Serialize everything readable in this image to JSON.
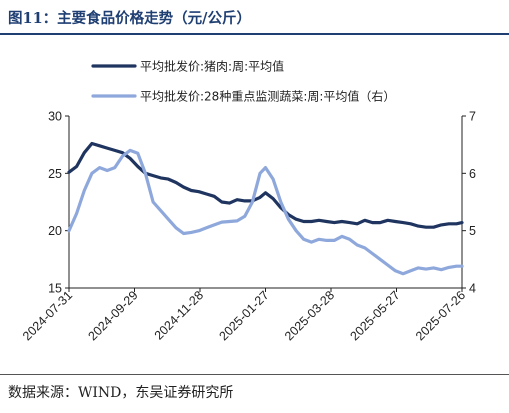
{
  "figure": {
    "title": "图11：主要食品价格走势（元/公斤）",
    "source": "数据来源：WIND，东吴证券研究所"
  },
  "colors": {
    "title": "#1f3f73",
    "series1": "#1f3560",
    "series2": "#8fa8dc"
  },
  "chart_data": {
    "type": "line",
    "xlabel": "",
    "ylabel": "",
    "x_ticks": [
      "2024-07-31",
      "2024-09-29",
      "2024-11-28",
      "2025-01-27",
      "2025-03-28",
      "2025-05-27",
      "2025-07-26"
    ],
    "x_range": [
      "2024-07-31",
      "2025-07-26"
    ],
    "left_axis": {
      "ylim": [
        15,
        30
      ],
      "ticks": [
        15,
        20,
        25,
        30
      ]
    },
    "right_axis": {
      "ylim": [
        4,
        7
      ],
      "ticks": [
        4,
        5,
        6,
        7
      ]
    },
    "grid": false,
    "legend_position": "top",
    "series": [
      {
        "name": "平均批发价:猪肉:周:平均值",
        "axis": "left",
        "x": [
          "2024-07-31",
          "2024-08-07",
          "2024-08-14",
          "2024-08-21",
          "2024-08-28",
          "2024-09-04",
          "2024-09-11",
          "2024-09-18",
          "2024-09-25",
          "2024-10-02",
          "2024-10-09",
          "2024-10-16",
          "2024-10-23",
          "2024-10-30",
          "2024-11-06",
          "2024-11-13",
          "2024-11-20",
          "2024-11-27",
          "2024-12-04",
          "2024-12-11",
          "2024-12-18",
          "2024-12-25",
          "2025-01-01",
          "2025-01-08",
          "2025-01-15",
          "2025-01-22",
          "2025-01-27",
          "2025-02-03",
          "2025-02-10",
          "2025-02-17",
          "2025-02-24",
          "2025-03-03",
          "2025-03-10",
          "2025-03-17",
          "2025-03-24",
          "2025-03-31",
          "2025-04-07",
          "2025-04-14",
          "2025-04-21",
          "2025-04-28",
          "2025-05-05",
          "2025-05-12",
          "2025-05-19",
          "2025-05-26",
          "2025-06-02",
          "2025-06-09",
          "2025-06-16",
          "2025-06-23",
          "2025-06-30",
          "2025-07-07",
          "2025-07-14",
          "2025-07-21",
          "2025-07-26"
        ],
        "values": [
          25.1,
          25.6,
          26.8,
          27.6,
          27.4,
          27.2,
          27.0,
          26.8,
          26.3,
          25.6,
          25.0,
          24.8,
          24.6,
          24.5,
          24.2,
          23.8,
          23.5,
          23.4,
          23.2,
          23.0,
          22.5,
          22.4,
          22.7,
          22.6,
          22.6,
          22.9,
          23.3,
          22.8,
          22.0,
          21.4,
          21.0,
          20.8,
          20.8,
          20.9,
          20.8,
          20.7,
          20.8,
          20.7,
          20.6,
          20.9,
          20.7,
          20.7,
          20.9,
          20.8,
          20.7,
          20.6,
          20.4,
          20.3,
          20.3,
          20.5,
          20.6,
          20.6,
          20.7
        ]
      },
      {
        "name": "平均批发价:28种重点监测蔬菜:周:平均值（右）",
        "axis": "right",
        "x": [
          "2024-07-31",
          "2024-08-07",
          "2024-08-14",
          "2024-08-21",
          "2024-08-28",
          "2024-09-04",
          "2024-09-11",
          "2024-09-18",
          "2024-09-25",
          "2024-10-02",
          "2024-10-09",
          "2024-10-16",
          "2024-10-23",
          "2024-10-30",
          "2024-11-06",
          "2024-11-13",
          "2024-11-20",
          "2024-11-27",
          "2024-12-04",
          "2024-12-11",
          "2024-12-18",
          "2024-12-25",
          "2025-01-01",
          "2025-01-08",
          "2025-01-15",
          "2025-01-22",
          "2025-01-27",
          "2025-02-03",
          "2025-02-10",
          "2025-02-17",
          "2025-02-24",
          "2025-03-03",
          "2025-03-10",
          "2025-03-17",
          "2025-03-24",
          "2025-03-31",
          "2025-04-07",
          "2025-04-14",
          "2025-04-21",
          "2025-04-28",
          "2025-05-05",
          "2025-05-12",
          "2025-05-19",
          "2025-05-26",
          "2025-06-02",
          "2025-06-09",
          "2025-06-16",
          "2025-06-23",
          "2025-06-30",
          "2025-07-07",
          "2025-07-14",
          "2025-07-21",
          "2025-07-26"
        ],
        "values": [
          5.0,
          5.3,
          5.7,
          6.0,
          6.1,
          6.05,
          6.1,
          6.3,
          6.4,
          6.35,
          6.0,
          5.5,
          5.35,
          5.2,
          5.05,
          4.95,
          4.97,
          5.0,
          5.05,
          5.1,
          5.15,
          5.16,
          5.17,
          5.25,
          5.5,
          6.0,
          6.1,
          5.9,
          5.5,
          5.2,
          5.0,
          4.85,
          4.8,
          4.85,
          4.83,
          4.83,
          4.9,
          4.85,
          4.75,
          4.7,
          4.6,
          4.5,
          4.4,
          4.3,
          4.25,
          4.3,
          4.35,
          4.33,
          4.35,
          4.32,
          4.36,
          4.38,
          4.38
        ]
      }
    ]
  }
}
